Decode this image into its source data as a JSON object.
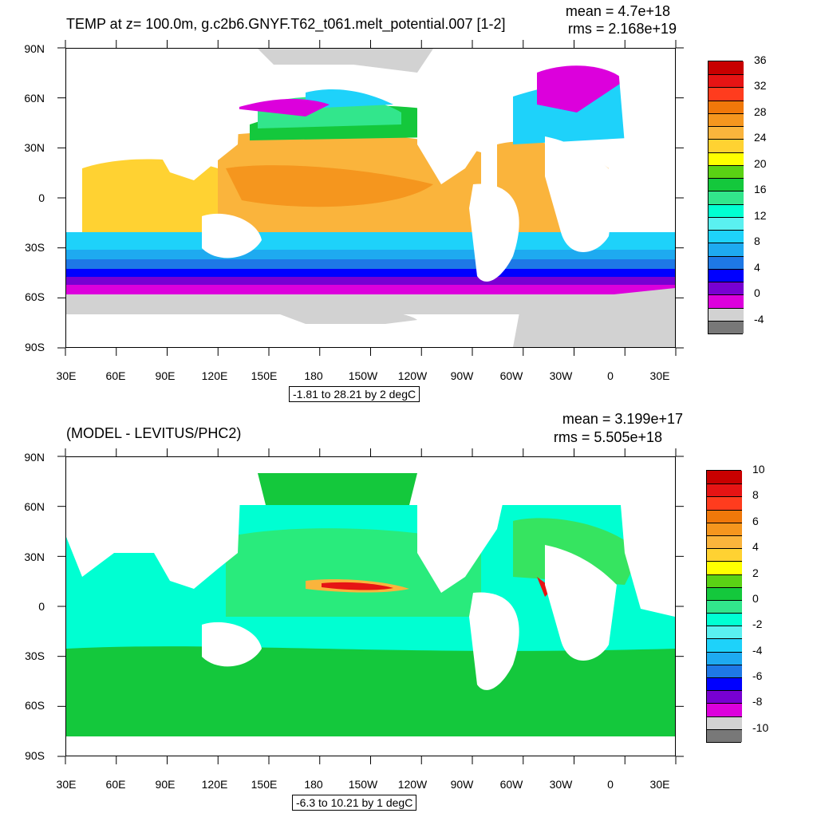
{
  "panel1": {
    "title": "TEMP at z= 100.0m, g.c2b6.GNYF.T62_t061.melt_potential.007 [1-2]",
    "mean_text": "mean = 4.7e+18",
    "rms_text": "rms = 2.168e+19",
    "range_text": "-1.81 to 28.21 by 2 degC",
    "colorbar": {
      "labels": [
        "36",
        "32",
        "28",
        "24",
        "20",
        "16",
        "12",
        "8",
        "4",
        "0",
        "-4"
      ],
      "colors": [
        "#c80000",
        "#e61414",
        "#ff3c1e",
        "#f0780a",
        "#f5961e",
        "#fab43c",
        "#ffd232",
        "#ffff00",
        "#5ad214",
        "#14c83c",
        "#32e68c",
        "#00ffd2",
        "#5af0f0",
        "#1ed2fa",
        "#1eaaf0",
        "#1e78e6",
        "#0000ff",
        "#7800d2",
        "#dc00dc",
        "#d2d2d2",
        "#787878"
      ]
    }
  },
  "panel2": {
    "title": "(MODEL - LEVITUS/PHC2)",
    "mean_text": "mean = 3.199e+17",
    "rms_text": "rms = 5.505e+18",
    "range_text": "-6.3 to 10.21 by 1 degC",
    "colorbar": {
      "labels": [
        "10",
        "8",
        "6",
        "4",
        "2",
        "0",
        "-2",
        "-4",
        "-6",
        "-8",
        "-10"
      ],
      "colors": [
        "#c80000",
        "#e61414",
        "#ff3c1e",
        "#f0780a",
        "#f5961e",
        "#fab43c",
        "#ffd232",
        "#ffff00",
        "#5ad214",
        "#14c83c",
        "#32e68c",
        "#00ffd2",
        "#5af0f0",
        "#1ed2fa",
        "#1eaaf0",
        "#1e78e6",
        "#0000ff",
        "#7800d2",
        "#dc00dc",
        "#d2d2d2",
        "#787878"
      ]
    }
  },
  "axes": {
    "lat_labels": [
      "90N",
      "60N",
      "30N",
      "0",
      "30S",
      "60S",
      "90S"
    ],
    "lon_labels": [
      "30E",
      "60E",
      "90E",
      "120E",
      "150E",
      "180",
      "150W",
      "120W",
      "90W",
      "60W",
      "30W",
      "0",
      "30E"
    ]
  }
}
